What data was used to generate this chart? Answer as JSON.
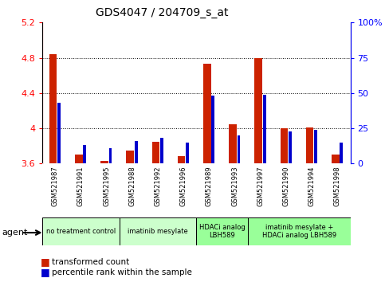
{
  "title": "GDS4047 / 204709_s_at",
  "samples": [
    "GSM521987",
    "GSM521991",
    "GSM521995",
    "GSM521988",
    "GSM521992",
    "GSM521996",
    "GSM521989",
    "GSM521993",
    "GSM521997",
    "GSM521990",
    "GSM521994",
    "GSM521998"
  ],
  "red_values": [
    4.84,
    3.7,
    3.63,
    3.75,
    3.85,
    3.68,
    4.73,
    4.05,
    4.8,
    4.0,
    4.01,
    3.7
  ],
  "blue_percentile": [
    43,
    13,
    11,
    16,
    18,
    15,
    48,
    20,
    49,
    23,
    24,
    15
  ],
  "ylim_left": [
    3.6,
    5.2
  ],
  "ylim_right": [
    0,
    100
  ],
  "yticks_left": [
    3.6,
    4.0,
    4.4,
    4.8,
    5.2
  ],
  "yticks_right": [
    0,
    25,
    50,
    75,
    100
  ],
  "ytick_labels_left": [
    "3.6",
    "4",
    "4.4",
    "4.8",
    "5.2"
  ],
  "ytick_labels_right": [
    "0",
    "25",
    "50",
    "75",
    "100%"
  ],
  "gridlines": [
    4.8,
    4.4,
    4.0
  ],
  "groups": [
    {
      "label": "no treatment control",
      "start": 0,
      "end": 3,
      "color": "#ccffcc"
    },
    {
      "label": "imatinib mesylate",
      "start": 3,
      "end": 6,
      "color": "#ccffcc"
    },
    {
      "label": "HDACi analog\nLBH589",
      "start": 6,
      "end": 8,
      "color": "#99ff99"
    },
    {
      "label": "imatinib mesylate +\nHDACi analog LBH589",
      "start": 8,
      "end": 12,
      "color": "#99ff99"
    }
  ],
  "agent_label": "agent",
  "legend_red": "transformed count",
  "legend_blue": "percentile rank within the sample",
  "red_color": "#cc2200",
  "blue_color": "#0000cc",
  "base": 3.6,
  "bg_color": "#c8c8c8"
}
